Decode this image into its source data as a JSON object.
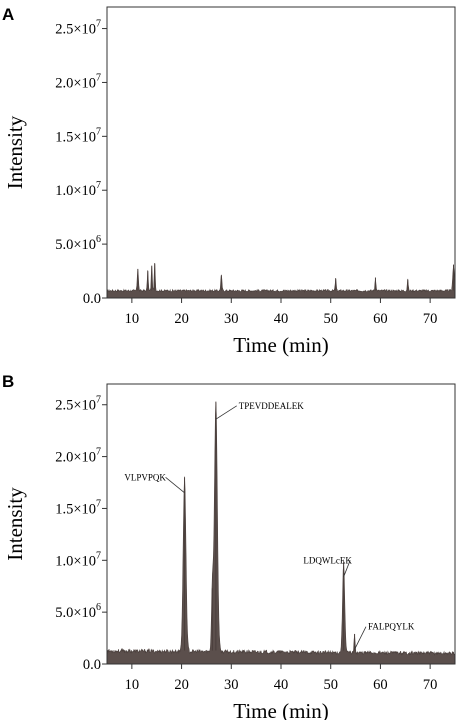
{
  "chart_data": [
    {
      "type": "area",
      "panel_label": "A",
      "xlabel": "Time (min)",
      "ylabel": "Intensity",
      "xlim": [
        5,
        75
      ],
      "ylim": [
        0,
        27000000
      ],
      "x_ticks": [
        10,
        20,
        30,
        40,
        50,
        60,
        70
      ],
      "y_ticks": [
        {
          "value": 0,
          "label": "0.0"
        },
        {
          "value": 5000000,
          "label": "5.0×10",
          "exp": "6"
        },
        {
          "value": 10000000,
          "label": "1.0×10",
          "exp": "7"
        },
        {
          "value": 15000000,
          "label": "1.5×10",
          "exp": "7"
        },
        {
          "value": 20000000,
          "label": "2.0×10",
          "exp": "7"
        },
        {
          "value": 25000000,
          "label": "2.5×10",
          "exp": "7"
        }
      ],
      "baseline": 700000,
      "peaks": [
        {
          "t": 11.2,
          "h": 2000000,
          "w": 0.12
        },
        {
          "t": 13.2,
          "h": 1800000,
          "w": 0.1
        },
        {
          "t": 14.0,
          "h": 2300000,
          "w": 0.1
        },
        {
          "t": 14.6,
          "h": 2500000,
          "w": 0.1
        },
        {
          "t": 28.0,
          "h": 1400000,
          "w": 0.12
        },
        {
          "t": 51.0,
          "h": 1100000,
          "w": 0.1
        },
        {
          "t": 59.0,
          "h": 1200000,
          "w": 0.1
        },
        {
          "t": 65.5,
          "h": 1000000,
          "w": 0.1
        },
        {
          "t": 74.7,
          "h": 2400000,
          "w": 0.15
        }
      ],
      "annotations": []
    },
    {
      "type": "area",
      "panel_label": "B",
      "xlabel": "Time (min)",
      "ylabel": "Intensity",
      "xlim": [
        5,
        75
      ],
      "ylim": [
        0,
        27000000
      ],
      "x_ticks": [
        10,
        20,
        30,
        40,
        50,
        60,
        70
      ],
      "y_ticks": [
        {
          "value": 0,
          "label": "0.0"
        },
        {
          "value": 5000000,
          "label": "5.0×10",
          "exp": "6"
        },
        {
          "value": 10000000,
          "label": "1.0×10",
          "exp": "7"
        },
        {
          "value": 15000000,
          "label": "1.5×10",
          "exp": "7"
        },
        {
          "value": 20000000,
          "label": "2.0×10",
          "exp": "7"
        },
        {
          "value": 25000000,
          "label": "2.5×10",
          "exp": "7"
        }
      ],
      "baseline": 1300000,
      "peaks": [
        {
          "t": 20.6,
          "h": 16700000,
          "w": 0.28
        },
        {
          "t": 26.2,
          "h": 6000000,
          "w": 0.18
        },
        {
          "t": 26.9,
          "h": 24000000,
          "w": 0.3
        },
        {
          "t": 52.6,
          "h": 8600000,
          "w": 0.22
        },
        {
          "t": 54.8,
          "h": 1600000,
          "w": 0.12
        }
      ],
      "annotations": [
        {
          "text": "VLPVPQK",
          "peak_t": 20.6,
          "peak_v": 16700000,
          "label_t": 8.5,
          "label_v": 18000000
        },
        {
          "text": "TPEVDDEALEK",
          "peak_t": 26.9,
          "peak_v": 23800000,
          "label_t": 31.5,
          "label_v": 24900000
        },
        {
          "text": "LDQWLcEK",
          "peak_t": 52.6,
          "peak_v": 8600000,
          "label_t": 44.5,
          "label_v": 10000000
        },
        {
          "text": "FALPQYLK",
          "peak_t": 54.8,
          "peak_v": 1600000,
          "label_t": 57.5,
          "label_v": 3600000
        }
      ]
    }
  ]
}
